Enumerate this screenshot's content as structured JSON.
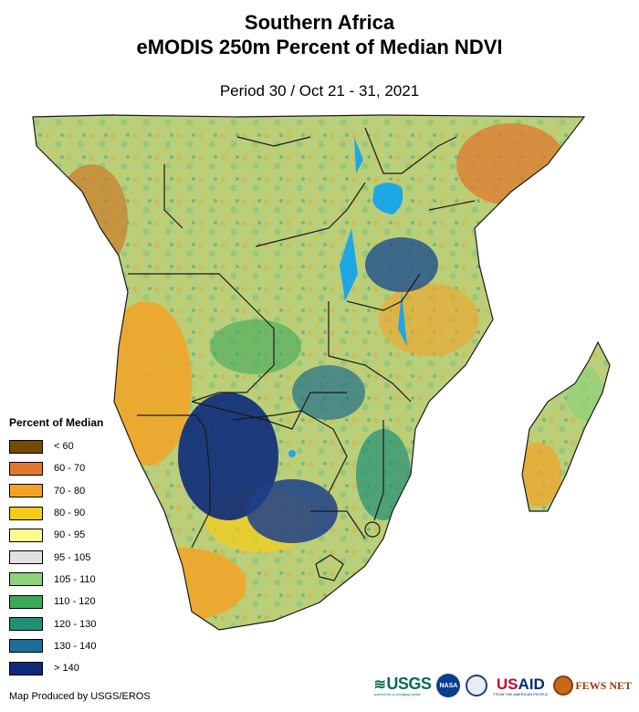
{
  "header": {
    "title_line1": "Southern Africa",
    "title_line2": "eMODIS 250m Percent of Median NDVI",
    "subtitle": "Period 30 / Oct 21 - 31, 2021"
  },
  "legend": {
    "title": "Percent of Median",
    "items": [
      {
        "label": "< 60",
        "color": "#734c00"
      },
      {
        "label": "60 - 70",
        "color": "#e0782f"
      },
      {
        "label": "70 - 80",
        "color": "#f2a325"
      },
      {
        "label": "80 - 90",
        "color": "#f6cd16"
      },
      {
        "label": "90 - 95",
        "color": "#fcfc8e"
      },
      {
        "label": "95 - 105",
        "color": "#e1e1e1"
      },
      {
        "label": "105 - 110",
        "color": "#8ed17a"
      },
      {
        "label": "110 - 120",
        "color": "#3ea85a"
      },
      {
        "label": "120 - 130",
        "color": "#1f8f76"
      },
      {
        "label": "130 - 140",
        "color": "#1d6f9a"
      },
      {
        "label": "> 140",
        "color": "#0c2a7a"
      }
    ]
  },
  "footer": {
    "credit": "Map Produced by USGS/EROS",
    "logos": {
      "usgs": "USGS",
      "usgs_tagline": "science for a changing world",
      "nasa": "NASA",
      "usaid_us": "US",
      "usaid_aid": "AID",
      "usaid_tagline": "FROM THE AMERICAN PEOPLE",
      "fews": "FEWS NET"
    }
  },
  "colors": {
    "water": "#1ea7e6",
    "border": "#1a1a1a"
  }
}
